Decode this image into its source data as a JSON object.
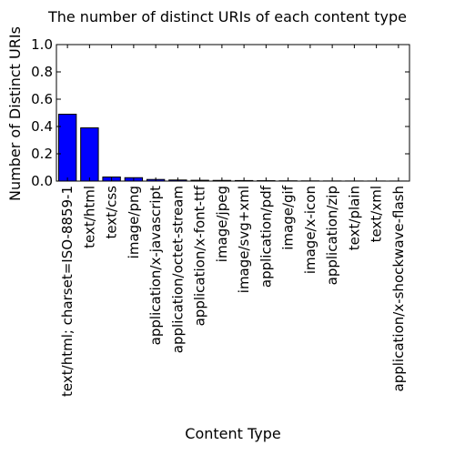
{
  "chart_data": {
    "type": "bar",
    "title": "The number of distinct URIs of each content type",
    "xlabel": "Content Type",
    "ylabel": "Number of Distinct URIs",
    "ylim": [
      0,
      1.0
    ],
    "yticks": [
      "0.0",
      "0.2",
      "0.4",
      "0.6",
      "0.8",
      "1.0"
    ],
    "grid": false,
    "bar_color": "#0000ff",
    "categories": [
      "text/html; charset=ISO-8859-1",
      "text/html",
      "text/css",
      "image/png",
      "application/x-javascript",
      "application/octet-stream",
      "application/x-font-ttf",
      "image/jpeg",
      "image/svg+xml",
      "application/pdf",
      "image/gif",
      "image/x-icon",
      "application/zip",
      "text/plain",
      "text/xml",
      "application/x-shockwave-flash"
    ],
    "values": [
      0.49,
      0.39,
      0.03,
      0.025,
      0.012,
      0.008,
      0.006,
      0.005,
      0.004,
      0.003,
      0.002,
      0.0015,
      0.001,
      0.0008,
      0.0006,
      0.0005
    ]
  }
}
